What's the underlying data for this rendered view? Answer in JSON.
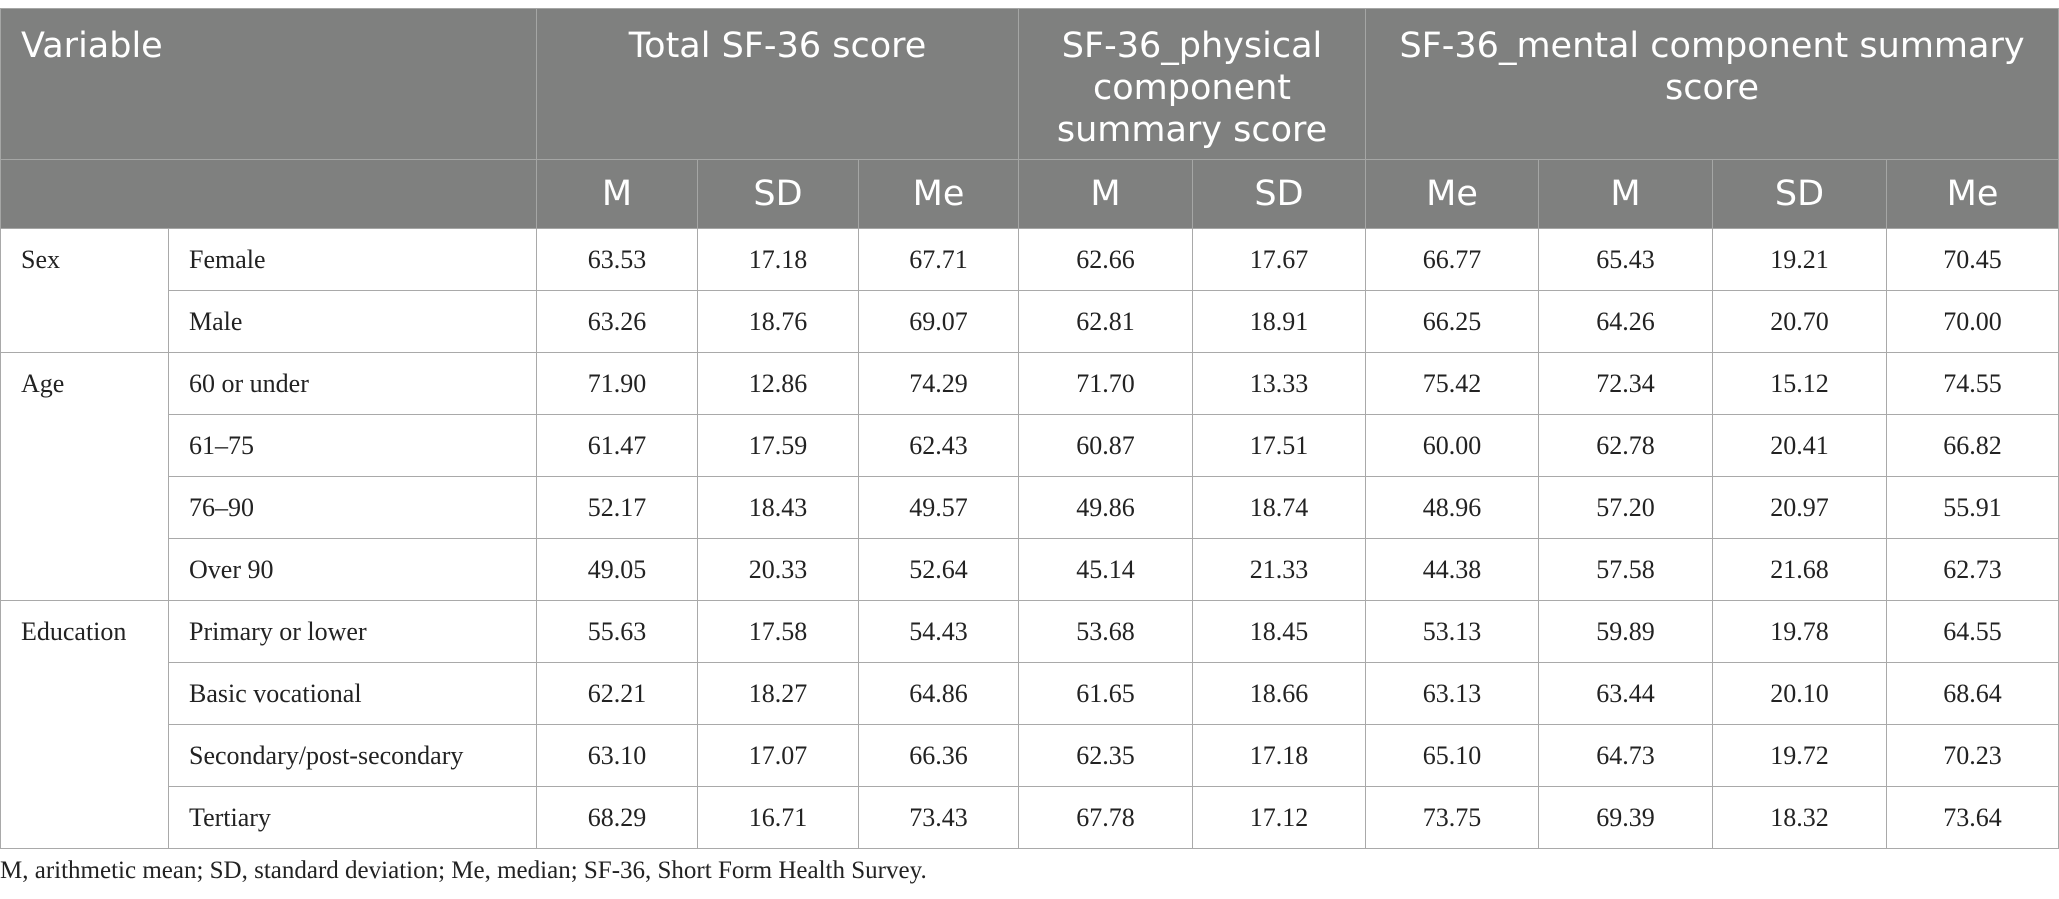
{
  "table": {
    "header": {
      "variable": "Variable",
      "groups": [
        "Total SF-36 score",
        "SF-36_physical component summary score",
        "SF-36_mental component summary score"
      ],
      "subheaders": [
        "M",
        "SD",
        "Me",
        "M",
        "SD",
        "Me",
        "M",
        "SD",
        "Me"
      ]
    },
    "sections": [
      {
        "label": "Sex",
        "rows": [
          {
            "label": "Female",
            "values": [
              "63.53",
              "17.18",
              "67.71",
              "62.66",
              "17.67",
              "66.77",
              "65.43",
              "19.21",
              "70.45"
            ]
          },
          {
            "label": "Male",
            "values": [
              "63.26",
              "18.76",
              "69.07",
              "62.81",
              "18.91",
              "66.25",
              "64.26",
              "20.70",
              "70.00"
            ]
          }
        ]
      },
      {
        "label": "Age",
        "rows": [
          {
            "label": "60 or under",
            "values": [
              "71.90",
              "12.86",
              "74.29",
              "71.70",
              "13.33",
              "75.42",
              "72.34",
              "15.12",
              "74.55"
            ]
          },
          {
            "label": "61–75",
            "values": [
              "61.47",
              "17.59",
              "62.43",
              "60.87",
              "17.51",
              "60.00",
              "62.78",
              "20.41",
              "66.82"
            ]
          },
          {
            "label": "76–90",
            "values": [
              "52.17",
              "18.43",
              "49.57",
              "49.86",
              "18.74",
              "48.96",
              "57.20",
              "20.97",
              "55.91"
            ]
          },
          {
            "label": "Over 90",
            "values": [
              "49.05",
              "20.33",
              "52.64",
              "45.14",
              "21.33",
              "44.38",
              "57.58",
              "21.68",
              "62.73"
            ]
          }
        ]
      },
      {
        "label": "Education",
        "rows": [
          {
            "label": "Primary or lower",
            "values": [
              "55.63",
              "17.58",
              "54.43",
              "53.68",
              "18.45",
              "53.13",
              "59.89",
              "19.78",
              "64.55"
            ]
          },
          {
            "label": "Basic vocational",
            "values": [
              "62.21",
              "18.27",
              "64.86",
              "61.65",
              "18.66",
              "63.13",
              "63.44",
              "20.10",
              "68.64"
            ]
          },
          {
            "label": "Secondary/post-secondary",
            "values": [
              "63.10",
              "17.07",
              "66.36",
              "62.35",
              "17.18",
              "65.10",
              "64.73",
              "19.72",
              "70.23"
            ]
          },
          {
            "label": "Tertiary",
            "values": [
              "68.29",
              "16.71",
              "73.43",
              "67.78",
              "17.12",
              "73.75",
              "69.39",
              "18.32",
              "73.64"
            ]
          }
        ]
      }
    ]
  },
  "footnote": "M, arithmetic mean; SD, standard deviation; Me, median; SF-36, Short Form Health Survey.",
  "colors": {
    "header_bg": "#7f807f",
    "header_text": "#ffffff",
    "border": "#a9a9a9",
    "body_text": "#222222"
  }
}
